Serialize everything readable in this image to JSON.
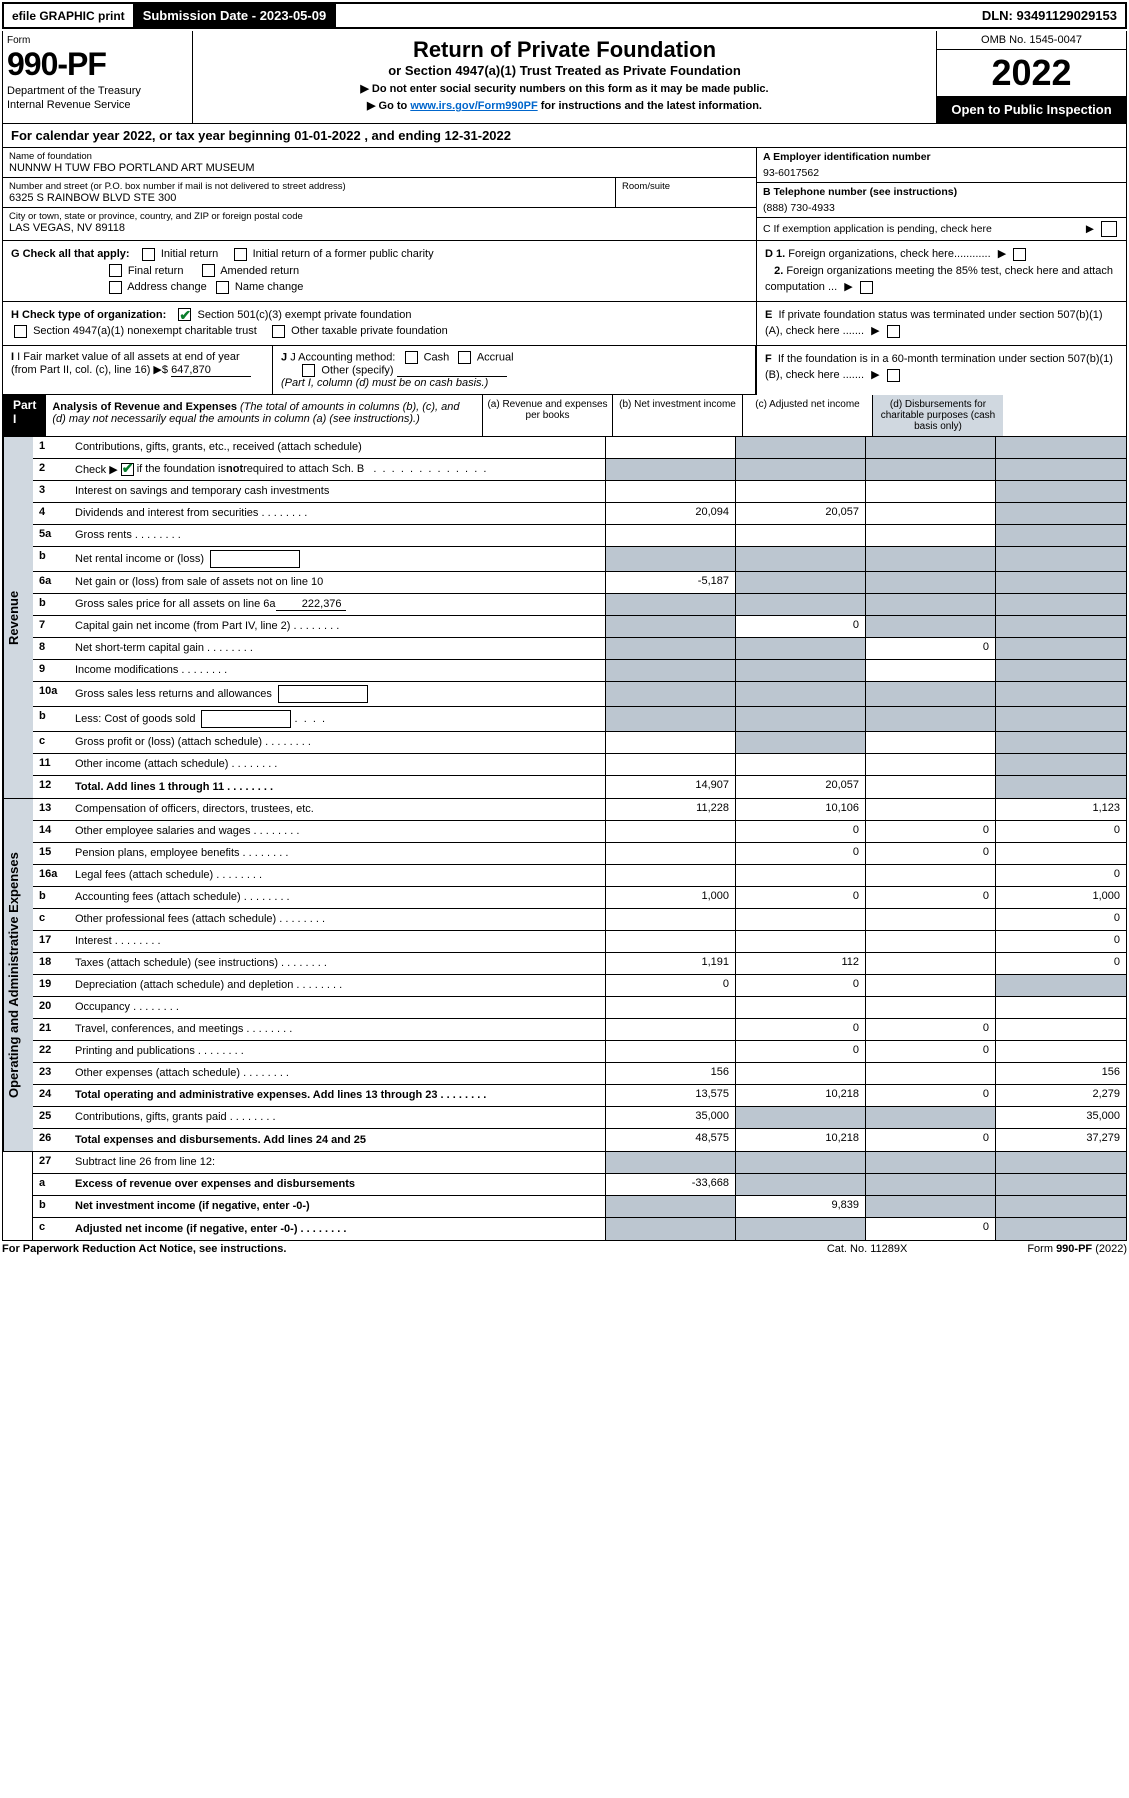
{
  "top": {
    "efile_label": "efile GRAPHIC print",
    "sub_date_label": "Submission Date - 2023-05-09",
    "dln": "DLN: 93491129029153"
  },
  "header": {
    "form_label": "Form",
    "form_no": "990-PF",
    "dept1": "Department of the Treasury",
    "dept2": "Internal Revenue Service",
    "title": "Return of Private Foundation",
    "subtitle": "or Section 4947(a)(1) Trust Treated as Private Foundation",
    "instr1": "▶ Do not enter social security numbers on this form as it may be made public.",
    "instr2_pre": "▶ Go to ",
    "instr2_link": "www.irs.gov/Form990PF",
    "instr2_post": " for instructions and the latest information.",
    "omb": "OMB No. 1545-0047",
    "year": "2022",
    "open": "Open to Public Inspection"
  },
  "cal_year": "For calendar year 2022, or tax year beginning 01-01-2022                            , and ending 12-31-2022",
  "id": {
    "name_label": "Name of foundation",
    "name": "NUNNW H TUW FBO PORTLAND ART MUSEUM",
    "addr_label": "Number and street (or P.O. box number if mail is not delivered to street address)",
    "addr": "6325 S RAINBOW BLVD STE 300",
    "room_label": "Room/suite",
    "city_label": "City or town, state or province, country, and ZIP or foreign postal code",
    "city": "LAS VEGAS, NV  89118",
    "ein_label": "A Employer identification number",
    "ein": "93-6017562",
    "phone_label": "B Telephone number (see instructions)",
    "phone": "(888) 730-4933",
    "c_label": "C If exemption application is pending, check here"
  },
  "checks": {
    "g_label": "G Check all that apply:",
    "g_opts": [
      "Initial return",
      "Initial return of a former public charity",
      "Final return",
      "Amended return",
      "Address change",
      "Name change"
    ],
    "h_label": "H Check type of organization:",
    "h1": "Section 501(c)(3) exempt private foundation",
    "h2": "Section 4947(a)(1) nonexempt charitable trust",
    "h3": "Other taxable private foundation",
    "i_label": "I Fair market value of all assets at end of year (from Part II, col. (c), line 16)",
    "i_val": "647,870",
    "j_label": "J Accounting method:",
    "j_cash": "Cash",
    "j_accrual": "Accrual",
    "j_other": "Other (specify)",
    "j_note": "(Part I, column (d) must be on cash basis.)",
    "d1": "D 1. Foreign organizations, check here............",
    "d2": "2. Foreign organizations meeting the 85% test, check here and attach computation ...",
    "e": "E  If private foundation status was terminated under section 507(b)(1)(A), check here .......",
    "f": "F  If the foundation is in a 60-month termination under section 507(b)(1)(B), check here ......."
  },
  "part1": {
    "badge": "Part I",
    "title": "Analysis of Revenue and Expenses",
    "note": "(The total of amounts in columns (b), (c), and (d) may not necessarily equal the amounts in column (a) (see instructions).)",
    "cols": {
      "a": "(a)  Revenue and expenses per books",
      "b": "(b)  Net investment income",
      "c": "(c)  Adjusted net income",
      "d": "(d)  Disbursements for charitable purposes (cash basis only)"
    }
  },
  "side_revenue": "Revenue",
  "side_expenses": "Operating and Administrative Expenses",
  "rows": {
    "r1": {
      "no": "1",
      "desc": "Contributions, gifts, grants, etc., received (attach schedule)",
      "a": "",
      "b": "",
      "c": "",
      "d": "",
      "shade": [
        "b",
        "c",
        "d"
      ]
    },
    "r2": {
      "no": "2",
      "desc": "Check ▶ ☑ if the foundation is not required to attach Sch. B",
      "a": "",
      "b": "",
      "c": "",
      "d": "",
      "shade": [
        "a",
        "b",
        "c",
        "d"
      ],
      "checked": true,
      "dots": true
    },
    "r3": {
      "no": "3",
      "desc": "Interest on savings and temporary cash investments",
      "a": "",
      "b": "",
      "c": "",
      "d": "",
      "shade": [
        "d"
      ]
    },
    "r4": {
      "no": "4",
      "desc": "Dividends and interest from securities",
      "a": "20,094",
      "b": "20,057",
      "c": "",
      "d": "",
      "shade": [
        "d"
      ],
      "dots": true
    },
    "r5a": {
      "no": "5a",
      "desc": "Gross rents",
      "a": "",
      "b": "",
      "c": "",
      "d": "",
      "shade": [
        "d"
      ],
      "dots": true
    },
    "r5b": {
      "no": "b",
      "desc": "Net rental income or (loss)",
      "a": "",
      "b": "",
      "c": "",
      "d": "",
      "shade": [
        "a",
        "b",
        "c",
        "d"
      ],
      "inline": true
    },
    "r6a": {
      "no": "6a",
      "desc": "Net gain or (loss) from sale of assets not on line 10",
      "a": "-5,187",
      "b": "",
      "c": "",
      "d": "",
      "shade": [
        "b",
        "c",
        "d"
      ]
    },
    "r6b": {
      "no": "b",
      "desc": "Gross sales price for all assets on line 6a",
      "a": "",
      "b": "",
      "c": "",
      "d": "",
      "shade": [
        "a",
        "b",
        "c",
        "d"
      ],
      "inline_val": "222,376"
    },
    "r7": {
      "no": "7",
      "desc": "Capital gain net income (from Part IV, line 2)",
      "a": "",
      "b": "0",
      "c": "",
      "d": "",
      "shade": [
        "a",
        "c",
        "d"
      ],
      "dots": true
    },
    "r8": {
      "no": "8",
      "desc": "Net short-term capital gain",
      "a": "",
      "b": "",
      "c": "0",
      "d": "",
      "shade": [
        "a",
        "b",
        "d"
      ],
      "dots": true
    },
    "r9": {
      "no": "9",
      "desc": "Income modifications",
      "a": "",
      "b": "",
      "c": "",
      "d": "",
      "shade": [
        "a",
        "b",
        "d"
      ],
      "dots": true
    },
    "r10a": {
      "no": "10a",
      "desc": "Gross sales less returns and allowances",
      "a": "",
      "b": "",
      "c": "",
      "d": "",
      "shade": [
        "a",
        "b",
        "c",
        "d"
      ],
      "inline": true
    },
    "r10b": {
      "no": "b",
      "desc": "Less: Cost of goods sold",
      "a": "",
      "b": "",
      "c": "",
      "d": "",
      "shade": [
        "a",
        "b",
        "c",
        "d"
      ],
      "inline": true,
      "dots": true
    },
    "r10c": {
      "no": "c",
      "desc": "Gross profit or (loss) (attach schedule)",
      "a": "",
      "b": "",
      "c": "",
      "d": "",
      "shade": [
        "b",
        "d"
      ],
      "dots": true
    },
    "r11": {
      "no": "11",
      "desc": "Other income (attach schedule)",
      "a": "",
      "b": "",
      "c": "",
      "d": "",
      "shade": [
        "d"
      ],
      "dots": true
    },
    "r12": {
      "no": "12",
      "desc": "Total. Add lines 1 through 11",
      "a": "14,907",
      "b": "20,057",
      "c": "",
      "d": "",
      "shade": [
        "d"
      ],
      "bold": true,
      "dots": true
    },
    "r13": {
      "no": "13",
      "desc": "Compensation of officers, directors, trustees, etc.",
      "a": "11,228",
      "b": "10,106",
      "c": "",
      "d": "1,123"
    },
    "r14": {
      "no": "14",
      "desc": "Other employee salaries and wages",
      "a": "",
      "b": "0",
      "c": "0",
      "d": "0",
      "dots": true
    },
    "r15": {
      "no": "15",
      "desc": "Pension plans, employee benefits",
      "a": "",
      "b": "0",
      "c": "0",
      "d": "",
      "dots": true
    },
    "r16a": {
      "no": "16a",
      "desc": "Legal fees (attach schedule)",
      "a": "",
      "b": "",
      "c": "",
      "d": "0",
      "dots": true
    },
    "r16b": {
      "no": "b",
      "desc": "Accounting fees (attach schedule)",
      "a": "1,000",
      "b": "0",
      "c": "0",
      "d": "1,000",
      "dots": true
    },
    "r16c": {
      "no": "c",
      "desc": "Other professional fees (attach schedule)",
      "a": "",
      "b": "",
      "c": "",
      "d": "0",
      "dots": true
    },
    "r17": {
      "no": "17",
      "desc": "Interest",
      "a": "",
      "b": "",
      "c": "",
      "d": "0",
      "dots": true
    },
    "r18": {
      "no": "18",
      "desc": "Taxes (attach schedule) (see instructions)",
      "a": "1,191",
      "b": "112",
      "c": "",
      "d": "0",
      "dots": true
    },
    "r19": {
      "no": "19",
      "desc": "Depreciation (attach schedule) and depletion",
      "a": "0",
      "b": "0",
      "c": "",
      "d": "",
      "shade": [
        "d"
      ],
      "dots": true
    },
    "r20": {
      "no": "20",
      "desc": "Occupancy",
      "a": "",
      "b": "",
      "c": "",
      "d": "",
      "dots": true
    },
    "r21": {
      "no": "21",
      "desc": "Travel, conferences, and meetings",
      "a": "",
      "b": "0",
      "c": "0",
      "d": "",
      "dots": true
    },
    "r22": {
      "no": "22",
      "desc": "Printing and publications",
      "a": "",
      "b": "0",
      "c": "0",
      "d": "",
      "dots": true
    },
    "r23": {
      "no": "23",
      "desc": "Other expenses (attach schedule)",
      "a": "156",
      "b": "",
      "c": "",
      "d": "156",
      "dots": true
    },
    "r24": {
      "no": "24",
      "desc": "Total operating and administrative expenses. Add lines 13 through 23",
      "a": "13,575",
      "b": "10,218",
      "c": "0",
      "d": "2,279",
      "bold": true,
      "dots": true
    },
    "r25": {
      "no": "25",
      "desc": "Contributions, gifts, grants paid",
      "a": "35,000",
      "b": "",
      "c": "",
      "d": "35,000",
      "shade": [
        "b",
        "c"
      ],
      "dots": true
    },
    "r26": {
      "no": "26",
      "desc": "Total expenses and disbursements. Add lines 24 and 25",
      "a": "48,575",
      "b": "10,218",
      "c": "0",
      "d": "37,279",
      "bold": true
    },
    "r27": {
      "no": "27",
      "desc": "Subtract line 26 from line 12:",
      "a": "",
      "b": "",
      "c": "",
      "d": "",
      "shade": [
        "a",
        "b",
        "c",
        "d"
      ]
    },
    "r27a": {
      "no": "a",
      "desc": "Excess of revenue over expenses and disbursements",
      "a": "-33,668",
      "b": "",
      "c": "",
      "d": "",
      "shade": [
        "b",
        "c",
        "d"
      ],
      "bold": true
    },
    "r27b": {
      "no": "b",
      "desc": "Net investment income (if negative, enter -0-)",
      "a": "",
      "b": "9,839",
      "c": "",
      "d": "",
      "shade": [
        "a",
        "c",
        "d"
      ],
      "bold": true
    },
    "r27c": {
      "no": "c",
      "desc": "Adjusted net income (if negative, enter -0-)",
      "a": "",
      "b": "",
      "c": "0",
      "d": "",
      "shade": [
        "a",
        "b",
        "d"
      ],
      "bold": true,
      "dots": true
    }
  },
  "footer": {
    "left": "For Paperwork Reduction Act Notice, see instructions.",
    "center": "Cat. No. 11289X",
    "right": "Form 990-PF (2022)"
  }
}
